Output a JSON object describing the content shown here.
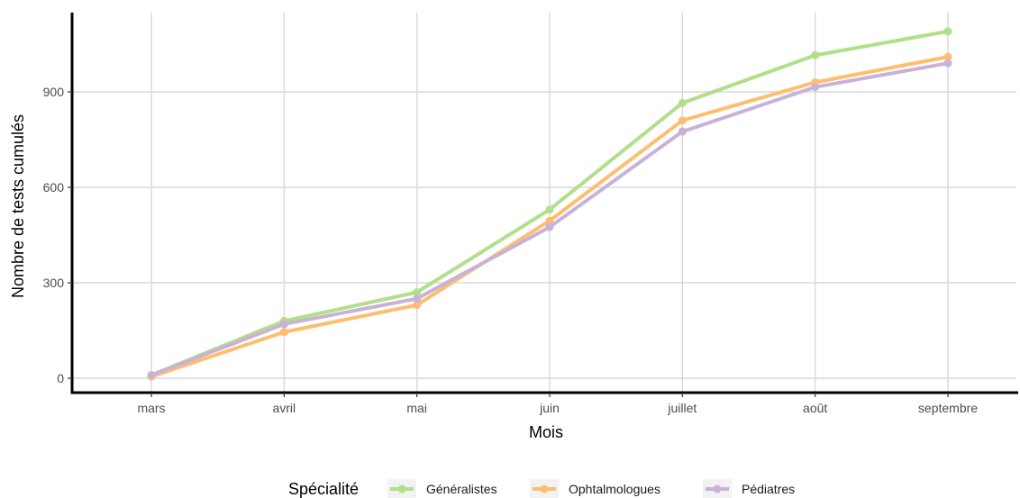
{
  "chart_data": {
    "type": "line",
    "title": "",
    "xlabel": "Mois",
    "ylabel": "Nombre de tests cumulés",
    "categories": [
      "mars",
      "avril",
      "mai",
      "juin",
      "juillet",
      "août",
      "septembre"
    ],
    "yticks": [
      0,
      300,
      600,
      900
    ],
    "ylim": [
      -30,
      1130
    ],
    "grid": true,
    "legend": {
      "title": "Spécialité",
      "position": "bottom"
    },
    "series": [
      {
        "name": "Généralistes",
        "color": "#B2DF8A",
        "values": [
          10,
          180,
          270,
          530,
          865,
          1015,
          1090
        ]
      },
      {
        "name": "Ophtalmologues",
        "color": "#FDBF6F",
        "values": [
          5,
          145,
          230,
          495,
          810,
          930,
          1010
        ]
      },
      {
        "name": "Pédiatres",
        "color": "#CAB2D6",
        "values": [
          10,
          170,
          250,
          475,
          775,
          915,
          990
        ]
      }
    ]
  }
}
